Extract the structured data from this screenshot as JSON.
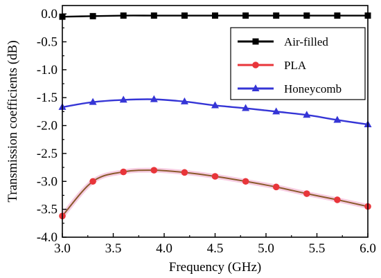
{
  "chart_data": {
    "type": "line",
    "title": "",
    "xlabel": "Frequency (GHz)",
    "ylabel": "Transmission coefficients (dB)",
    "xlim": [
      3.0,
      6.0
    ],
    "ylim": [
      -4.0,
      0.15
    ],
    "xticks": [
      "3.0",
      "3.5",
      "4.0",
      "4.5",
      "5.0",
      "5.5",
      "6.0"
    ],
    "yticks": [
      "0.0",
      "-0.5",
      "-1.0",
      "-1.5",
      "-2.0",
      "-2.5",
      "-3.0",
      "-3.5",
      "-4.0"
    ],
    "grid": false,
    "legend_position": "top-right",
    "x": [
      3.0,
      3.3,
      3.6,
      3.9,
      4.2,
      4.5,
      4.8,
      5.1,
      5.4,
      5.7,
      6.0
    ],
    "series": [
      {
        "name": "Air-filled",
        "color": "#000000",
        "marker": "square",
        "values": [
          -0.05,
          -0.04,
          -0.03,
          -0.03,
          -0.03,
          -0.03,
          -0.03,
          -0.03,
          -0.03,
          -0.03,
          -0.03
        ]
      },
      {
        "name": "PLA",
        "color": "#e8353a",
        "marker": "circle",
        "values": [
          -3.62,
          -3.0,
          -2.83,
          -2.8,
          -2.84,
          -2.91,
          -3.0,
          -3.1,
          -3.22,
          -3.33,
          -3.45
        ]
      },
      {
        "name": "Honeycomb",
        "color": "#3535d6",
        "marker": "triangle",
        "values": [
          -1.67,
          -1.58,
          -1.54,
          -1.53,
          -1.57,
          -1.64,
          -1.69,
          -1.75,
          -1.81,
          -1.9,
          -1.98
        ]
      }
    ]
  }
}
